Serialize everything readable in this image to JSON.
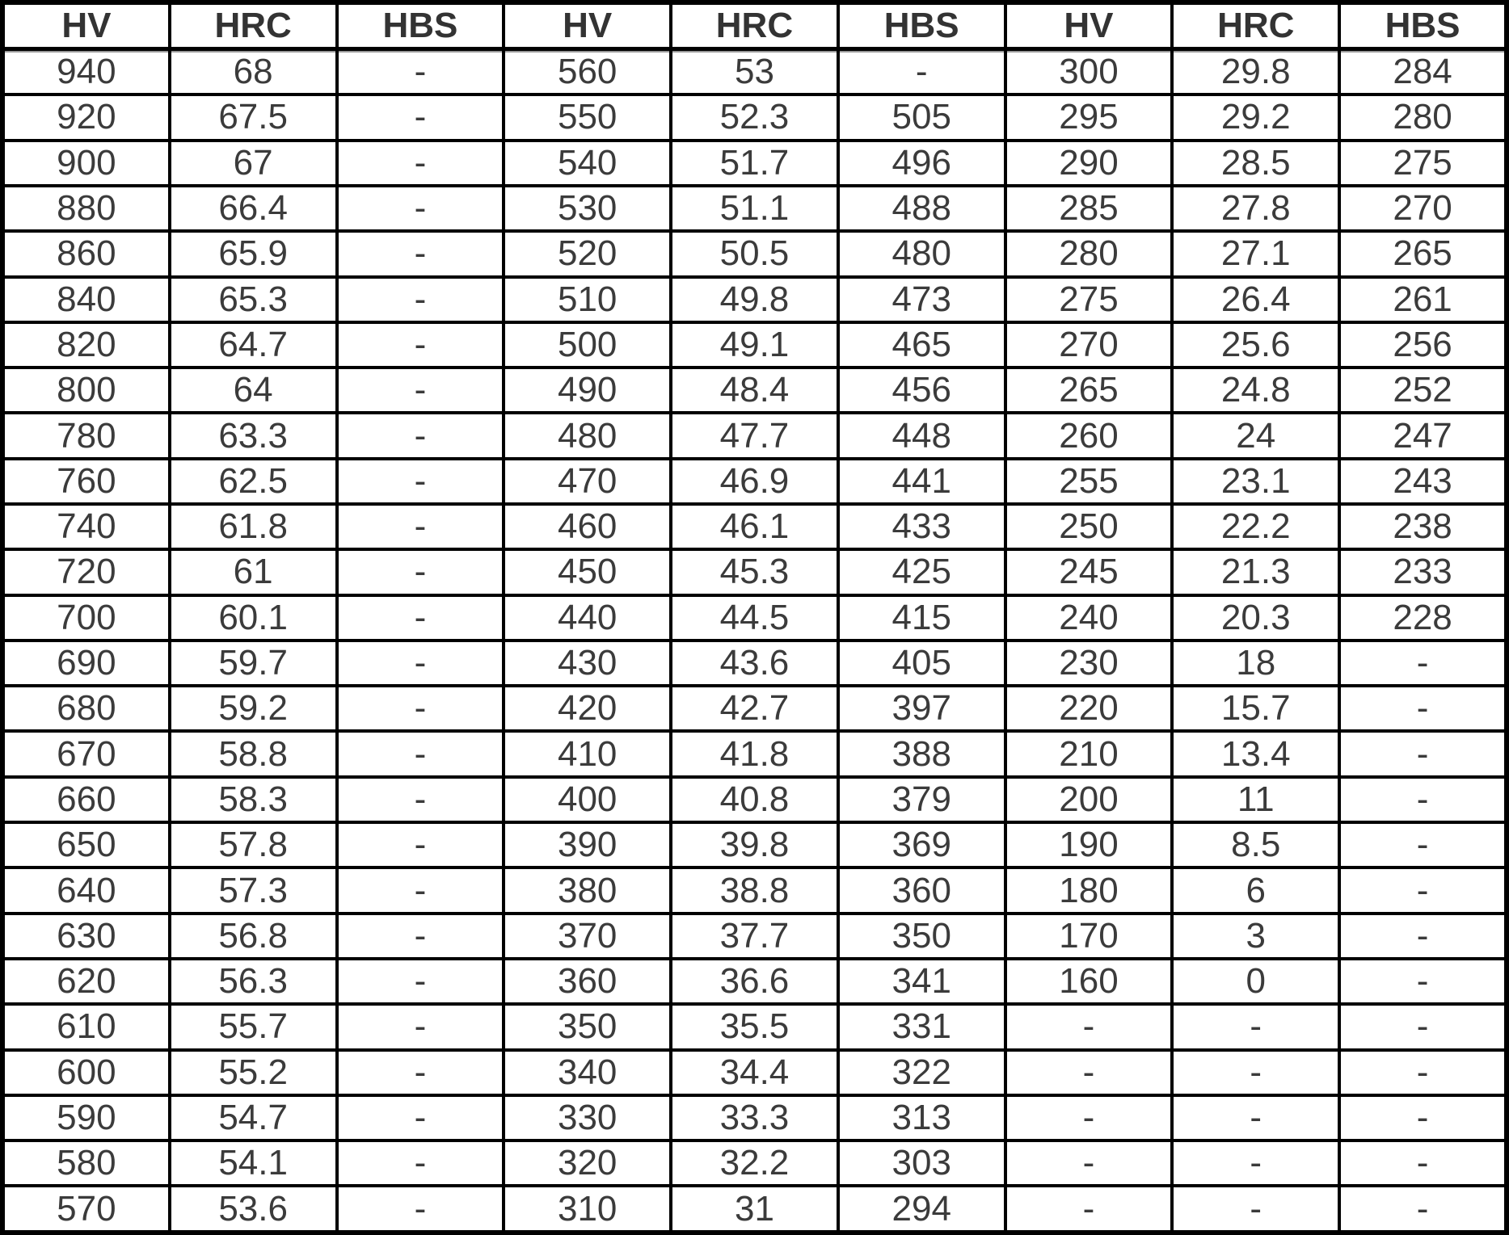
{
  "styles": {
    "border_color": "#000000",
    "header_text_color": "#333333",
    "body_text_color": "#3b3b3b",
    "background_color": "#ffffff"
  },
  "table": {
    "columns": [
      "HV",
      "HRC",
      "HBS",
      "HV",
      "HRC",
      "HBS",
      "HV",
      "HRC",
      "HBS"
    ],
    "rows": [
      [
        "940",
        "68",
        "-",
        "560",
        "53",
        "-",
        "300",
        "29.8",
        "284"
      ],
      [
        "920",
        "67.5",
        "-",
        "550",
        "52.3",
        "505",
        "295",
        "29.2",
        "280"
      ],
      [
        "900",
        "67",
        "-",
        "540",
        "51.7",
        "496",
        "290",
        "28.5",
        "275"
      ],
      [
        "880",
        "66.4",
        "-",
        "530",
        "51.1",
        "488",
        "285",
        "27.8",
        "270"
      ],
      [
        "860",
        "65.9",
        "-",
        "520",
        "50.5",
        "480",
        "280",
        "27.1",
        "265"
      ],
      [
        "840",
        "65.3",
        "-",
        "510",
        "49.8",
        "473",
        "275",
        "26.4",
        "261"
      ],
      [
        "820",
        "64.7",
        "-",
        "500",
        "49.1",
        "465",
        "270",
        "25.6",
        "256"
      ],
      [
        "800",
        "64",
        "-",
        "490",
        "48.4",
        "456",
        "265",
        "24.8",
        "252"
      ],
      [
        "780",
        "63.3",
        "-",
        "480",
        "47.7",
        "448",
        "260",
        "24",
        "247"
      ],
      [
        "760",
        "62.5",
        "-",
        "470",
        "46.9",
        "441",
        "255",
        "23.1",
        "243"
      ],
      [
        "740",
        "61.8",
        "-",
        "460",
        "46.1",
        "433",
        "250",
        "22.2",
        "238"
      ],
      [
        "720",
        "61",
        "-",
        "450",
        "45.3",
        "425",
        "245",
        "21.3",
        "233"
      ],
      [
        "700",
        "60.1",
        "-",
        "440",
        "44.5",
        "415",
        "240",
        "20.3",
        "228"
      ],
      [
        "690",
        "59.7",
        "-",
        "430",
        "43.6",
        "405",
        "230",
        "18",
        "-"
      ],
      [
        "680",
        "59.2",
        "-",
        "420",
        "42.7",
        "397",
        "220",
        "15.7",
        "-"
      ],
      [
        "670",
        "58.8",
        "-",
        "410",
        "41.8",
        "388",
        "210",
        "13.4",
        "-"
      ],
      [
        "660",
        "58.3",
        "-",
        "400",
        "40.8",
        "379",
        "200",
        "11",
        "-"
      ],
      [
        "650",
        "57.8",
        "-",
        "390",
        "39.8",
        "369",
        "190",
        "8.5",
        "-"
      ],
      [
        "640",
        "57.3",
        "-",
        "380",
        "38.8",
        "360",
        "180",
        "6",
        "-"
      ],
      [
        "630",
        "56.8",
        "-",
        "370",
        "37.7",
        "350",
        "170",
        "3",
        "-"
      ],
      [
        "620",
        "56.3",
        "-",
        "360",
        "36.6",
        "341",
        "160",
        "0",
        "-"
      ],
      [
        "610",
        "55.7",
        "-",
        "350",
        "35.5",
        "331",
        "-",
        "-",
        "-"
      ],
      [
        "600",
        "55.2",
        "-",
        "340",
        "34.4",
        "322",
        "-",
        "-",
        "-"
      ],
      [
        "590",
        "54.7",
        "-",
        "330",
        "33.3",
        "313",
        "-",
        "-",
        "-"
      ],
      [
        "580",
        "54.1",
        "-",
        "320",
        "32.2",
        "303",
        "-",
        "-",
        "-"
      ],
      [
        "570",
        "53.6",
        "-",
        "310",
        "31",
        "294",
        "-",
        "-",
        "-"
      ]
    ]
  }
}
